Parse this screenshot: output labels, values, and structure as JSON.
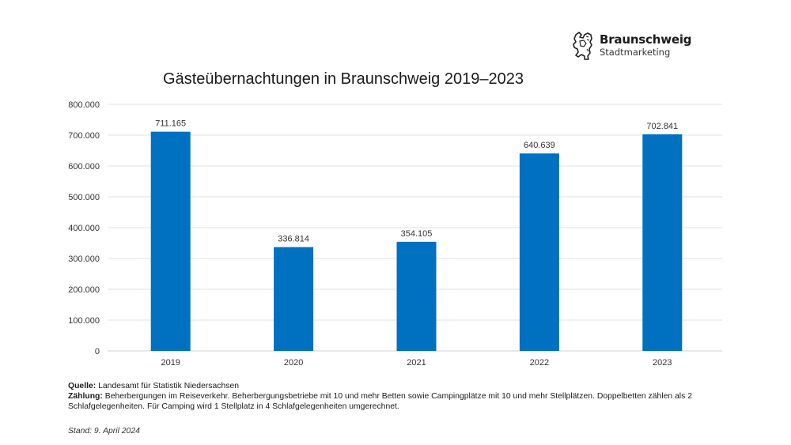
{
  "logo": {
    "icon": "lion-crest-icon",
    "name": "Braunschweig",
    "subtitle": "Stadtmarketing"
  },
  "chart_data": {
    "type": "bar",
    "title": "Gästeübernachtungen in Braunschweig 2019–2023",
    "xlabel": "",
    "ylabel": "",
    "categories": [
      "2019",
      "2020",
      "2021",
      "2022",
      "2023"
    ],
    "values": [
      711165,
      336814,
      354105,
      640639,
      702841
    ],
    "value_labels": [
      "711.165",
      "336.814",
      "354.105",
      "640.639",
      "702.841"
    ],
    "ylim": [
      0,
      800000
    ],
    "yticks": [
      0,
      100000,
      200000,
      300000,
      400000,
      500000,
      600000,
      700000,
      800000
    ],
    "ytick_labels": [
      "0",
      "100.000",
      "200.000",
      "300.000",
      "400.000",
      "500.000",
      "600.000",
      "700.000",
      "800.000"
    ],
    "grid": true,
    "legend": "none",
    "bar_color": "#0070C0"
  },
  "footer": {
    "source_label": "Quelle:",
    "source_text": "Landesamt für Statistik Niedersachsen",
    "count_label": "Zählung:",
    "count_text": "Beherbergungen im Reiseverkehr. Beherbergungsbetriebe mit 10 und mehr Betten sowie Campingplätze mit 10 und mehr Stellplätzen. Doppelbetten zählen als 2 Schlafgelegenheiten. Für Camping wird 1 Stellplatz in 4 Schlafgelegenheiten umgerechnet.",
    "stand": "Stand: 9. April 2024"
  }
}
